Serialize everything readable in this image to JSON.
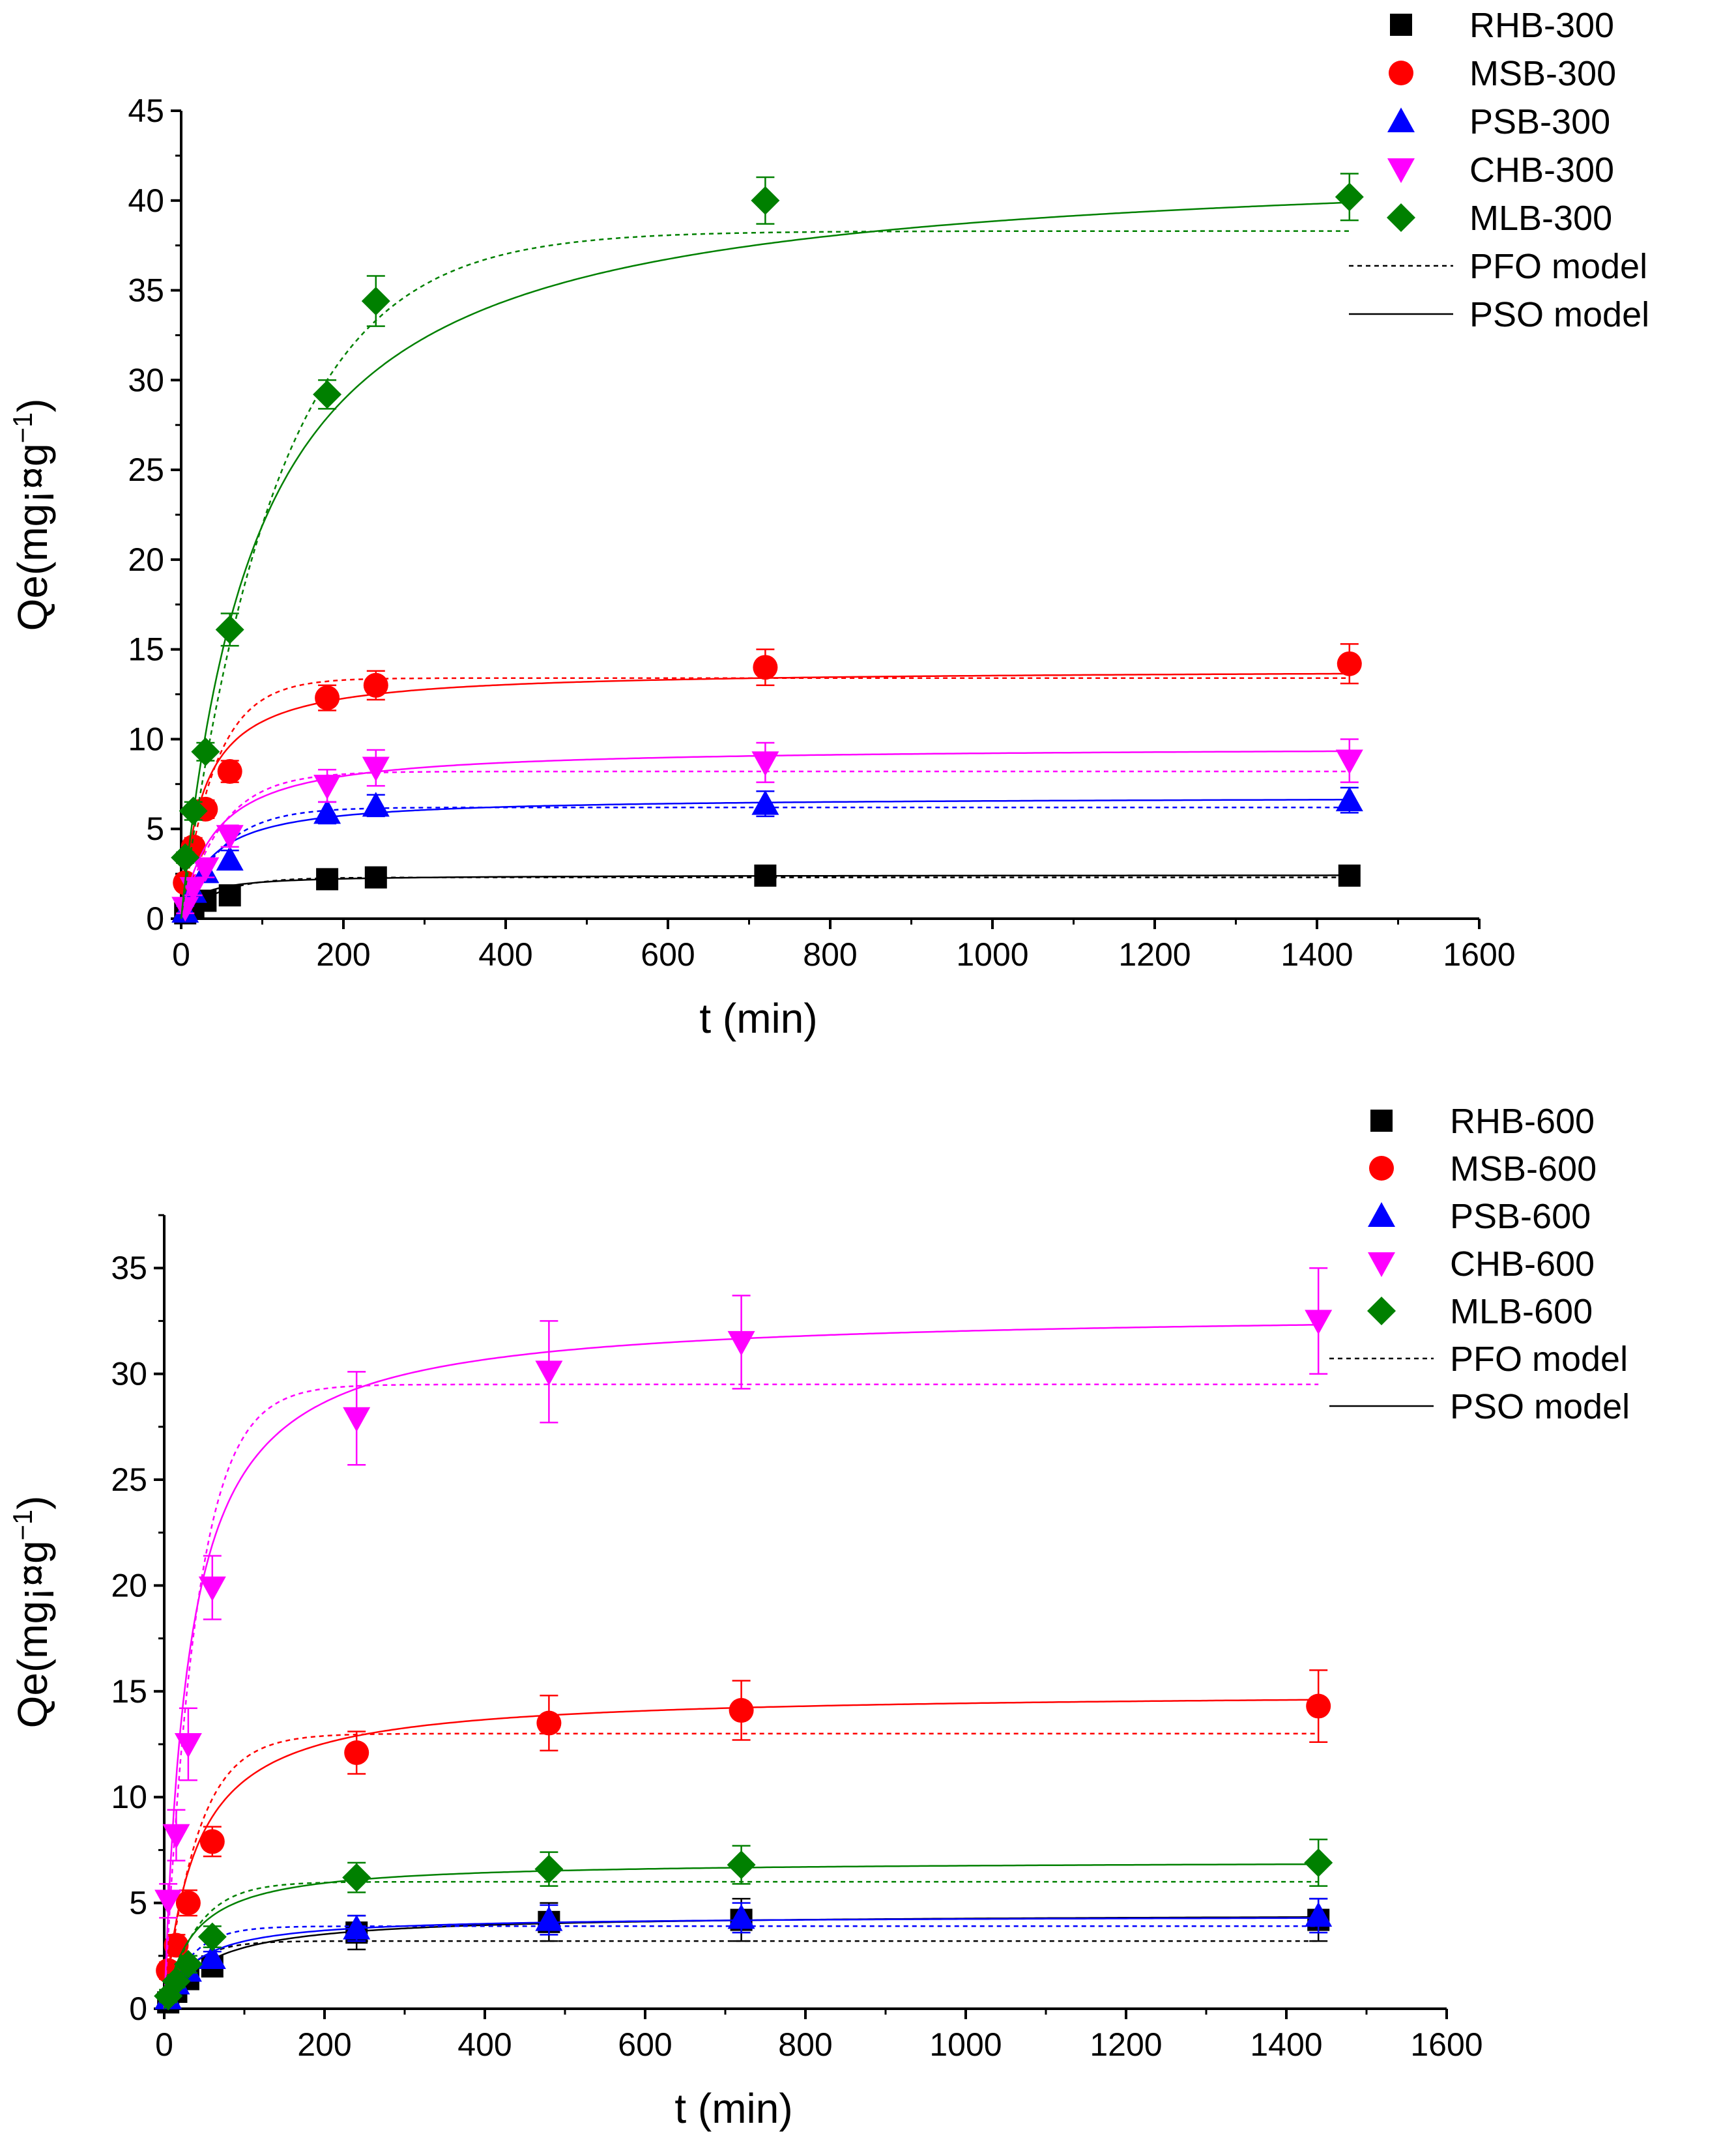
{
  "chart_data": [
    {
      "type": "scatter",
      "xlabel": "t (min)",
      "ylabel": "Qe(mg¡¤g",
      "ylabel_sup": "−1",
      "ylabel_close": ")",
      "xlim": [
        0,
        1600
      ],
      "ylim": [
        0,
        45
      ],
      "xticks": [
        0,
        200,
        400,
        600,
        800,
        1000,
        1200,
        1400,
        1600
      ],
      "yticks": [
        0,
        5,
        10,
        15,
        20,
        25,
        30,
        35,
        40,
        45
      ],
      "series": [
        {
          "name": "RHB-300",
          "color": "#000000",
          "marker": "square",
          "x": [
            5,
            15,
            30,
            60,
            180,
            240,
            720,
            1440
          ],
          "y": [
            0.3,
            0.6,
            1.0,
            1.3,
            2.2,
            2.3,
            2.4,
            2.4
          ],
          "err": [
            0.2,
            0.2,
            0.2,
            0.2,
            0.2,
            0.2,
            0.2,
            0.2
          ],
          "pfo": {
            "qe": 2.3,
            "k": 0.022
          },
          "pso": {
            "qe": 2.45,
            "k": 0.02
          }
        },
        {
          "name": "MSB-300",
          "color": "#ff0000",
          "marker": "circle",
          "x": [
            5,
            15,
            30,
            60,
            180,
            240,
            720,
            1440
          ],
          "y": [
            2.0,
            4.0,
            6.1,
            8.2,
            12.3,
            13.0,
            14.0,
            14.2
          ],
          "err": [
            0.4,
            0.5,
            0.5,
            0.6,
            0.7,
            0.8,
            1.0,
            1.1
          ],
          "pfo": {
            "qe": 13.4,
            "k": 0.024
          },
          "pso": {
            "qe": 13.9,
            "k": 0.0027
          }
        },
        {
          "name": "PSB-300",
          "color": "#0000ff",
          "marker": "triangle-up",
          "x": [
            5,
            15,
            30,
            60,
            180,
            240,
            720,
            1440
          ],
          "y": [
            0.4,
            1.5,
            2.6,
            3.3,
            5.9,
            6.3,
            6.4,
            6.6
          ],
          "err": [
            0.3,
            0.4,
            0.4,
            0.5,
            0.6,
            0.6,
            0.7,
            0.7
          ],
          "pfo": {
            "qe": 6.2,
            "k": 0.02
          },
          "pso": {
            "qe": 6.8,
            "k": 0.004
          }
        },
        {
          "name": "CHB-300",
          "color": "#ff00ff",
          "marker": "triangle-down",
          "x": [
            5,
            15,
            30,
            60,
            180,
            240,
            720,
            1440
          ],
          "y": [
            0.6,
            1.7,
            2.8,
            4.6,
            7.4,
            8.4,
            8.7,
            8.8
          ],
          "err": [
            0.3,
            0.4,
            0.5,
            0.6,
            0.9,
            1.0,
            1.1,
            1.2
          ],
          "pfo": {
            "qe": 8.2,
            "k": 0.02
          },
          "pso": {
            "qe": 9.6,
            "k": 0.0025
          }
        },
        {
          "name": "MLB-300",
          "color": "#008000",
          "marker": "diamond",
          "x": [
            5,
            15,
            30,
            60,
            180,
            240,
            720,
            1440
          ],
          "y": [
            3.4,
            6.0,
            9.3,
            16.1,
            29.2,
            34.4,
            40.0,
            40.2
          ],
          "err": [
            0.3,
            0.5,
            0.5,
            0.9,
            0.8,
            1.4,
            1.3,
            1.3
          ],
          "pfo": {
            "qe": 38.3,
            "k": 0.0085
          },
          "pso": {
            "qe": 42.5,
            "k": 0.00025
          }
        }
      ],
      "legend": {
        "placement": "top-right",
        "items": [
          "RHB-300",
          "MSB-300",
          "PSB-300",
          "CHB-300",
          "MLB-300",
          "PFO model",
          "PSO model"
        ]
      }
    },
    {
      "type": "scatter",
      "xlabel": "t (min)",
      "ylabel": "Qe(mg¡¤g",
      "ylabel_sup": "−1",
      "ylabel_close": ")",
      "xlim": [
        0,
        1600
      ],
      "ylim": [
        0,
        37.5
      ],
      "xticks": [
        0,
        200,
        400,
        600,
        800,
        1000,
        1200,
        1400,
        1600
      ],
      "yticks": [
        0,
        5,
        10,
        15,
        20,
        25,
        30,
        35
      ],
      "series": [
        {
          "name": "RHB-600",
          "color": "#000000",
          "marker": "square",
          "x": [
            5,
            15,
            30,
            60,
            240,
            480,
            720,
            1440
          ],
          "y": [
            0.3,
            0.8,
            1.4,
            2.0,
            3.6,
            4.1,
            4.2,
            4.2
          ],
          "err": [
            0.2,
            0.3,
            0.3,
            0.3,
            0.8,
            0.9,
            1.0,
            1.0
          ],
          "pfo": {
            "qe": 3.2,
            "k": 0.03
          },
          "pso": {
            "qe": 4.5,
            "k": 0.004
          }
        },
        {
          "name": "MSB-600",
          "color": "#ff0000",
          "marker": "circle",
          "x": [
            5,
            15,
            30,
            60,
            240,
            480,
            720,
            1440
          ],
          "y": [
            1.8,
            3.0,
            5.0,
            7.9,
            12.1,
            13.5,
            14.1,
            14.3
          ],
          "err": [
            0.4,
            0.5,
            0.6,
            0.7,
            1.0,
            1.3,
            1.4,
            1.7
          ],
          "pfo": {
            "qe": 13.0,
            "k": 0.024
          },
          "pso": {
            "qe": 15.0,
            "k": 0.0017
          }
        },
        {
          "name": "PSB-600",
          "color": "#0000ff",
          "marker": "triangle-up",
          "x": [
            5,
            15,
            30,
            60,
            240,
            480,
            720,
            1440
          ],
          "y": [
            0.5,
            1.2,
            1.8,
            2.4,
            3.8,
            4.2,
            4.3,
            4.4
          ],
          "err": [
            0.2,
            0.3,
            0.3,
            0.3,
            0.6,
            0.7,
            0.7,
            0.8
          ],
          "pfo": {
            "qe": 3.9,
            "k": 0.03
          },
          "pso": {
            "qe": 4.4,
            "k": 0.006
          }
        },
        {
          "name": "CHB-600",
          "color": "#ff00ff",
          "marker": "triangle-down",
          "x": [
            5,
            15,
            30,
            60,
            240,
            480,
            720,
            1440
          ],
          "y": [
            5.1,
            8.2,
            12.5,
            19.9,
            27.9,
            30.1,
            31.5,
            32.5
          ],
          "err": [
            0.8,
            1.2,
            1.7,
            1.5,
            2.2,
            2.4,
            2.2,
            2.5
          ],
          "pfo": {
            "qe": 29.5,
            "k": 0.025
          },
          "pso": {
            "qe": 33.0,
            "k": 0.001
          }
        },
        {
          "name": "MLB-600",
          "color": "#008000",
          "marker": "diamond",
          "x": [
            5,
            15,
            30,
            60,
            240,
            480,
            720,
            1440
          ],
          "y": [
            0.6,
            1.3,
            2.1,
            3.4,
            6.2,
            6.6,
            6.8,
            6.9
          ],
          "err": [
            0.3,
            0.3,
            0.4,
            0.5,
            0.7,
            0.8,
            0.9,
            1.1
          ],
          "pfo": {
            "qe": 6.0,
            "k": 0.025
          },
          "pso": {
            "qe": 7.0,
            "k": 0.004
          }
        }
      ],
      "legend": {
        "placement": "top-right",
        "items": [
          "RHB-600",
          "MSB-600",
          "PSB-600",
          "CHB-600",
          "MLB-600",
          "PFO model",
          "PSO model"
        ]
      }
    }
  ]
}
